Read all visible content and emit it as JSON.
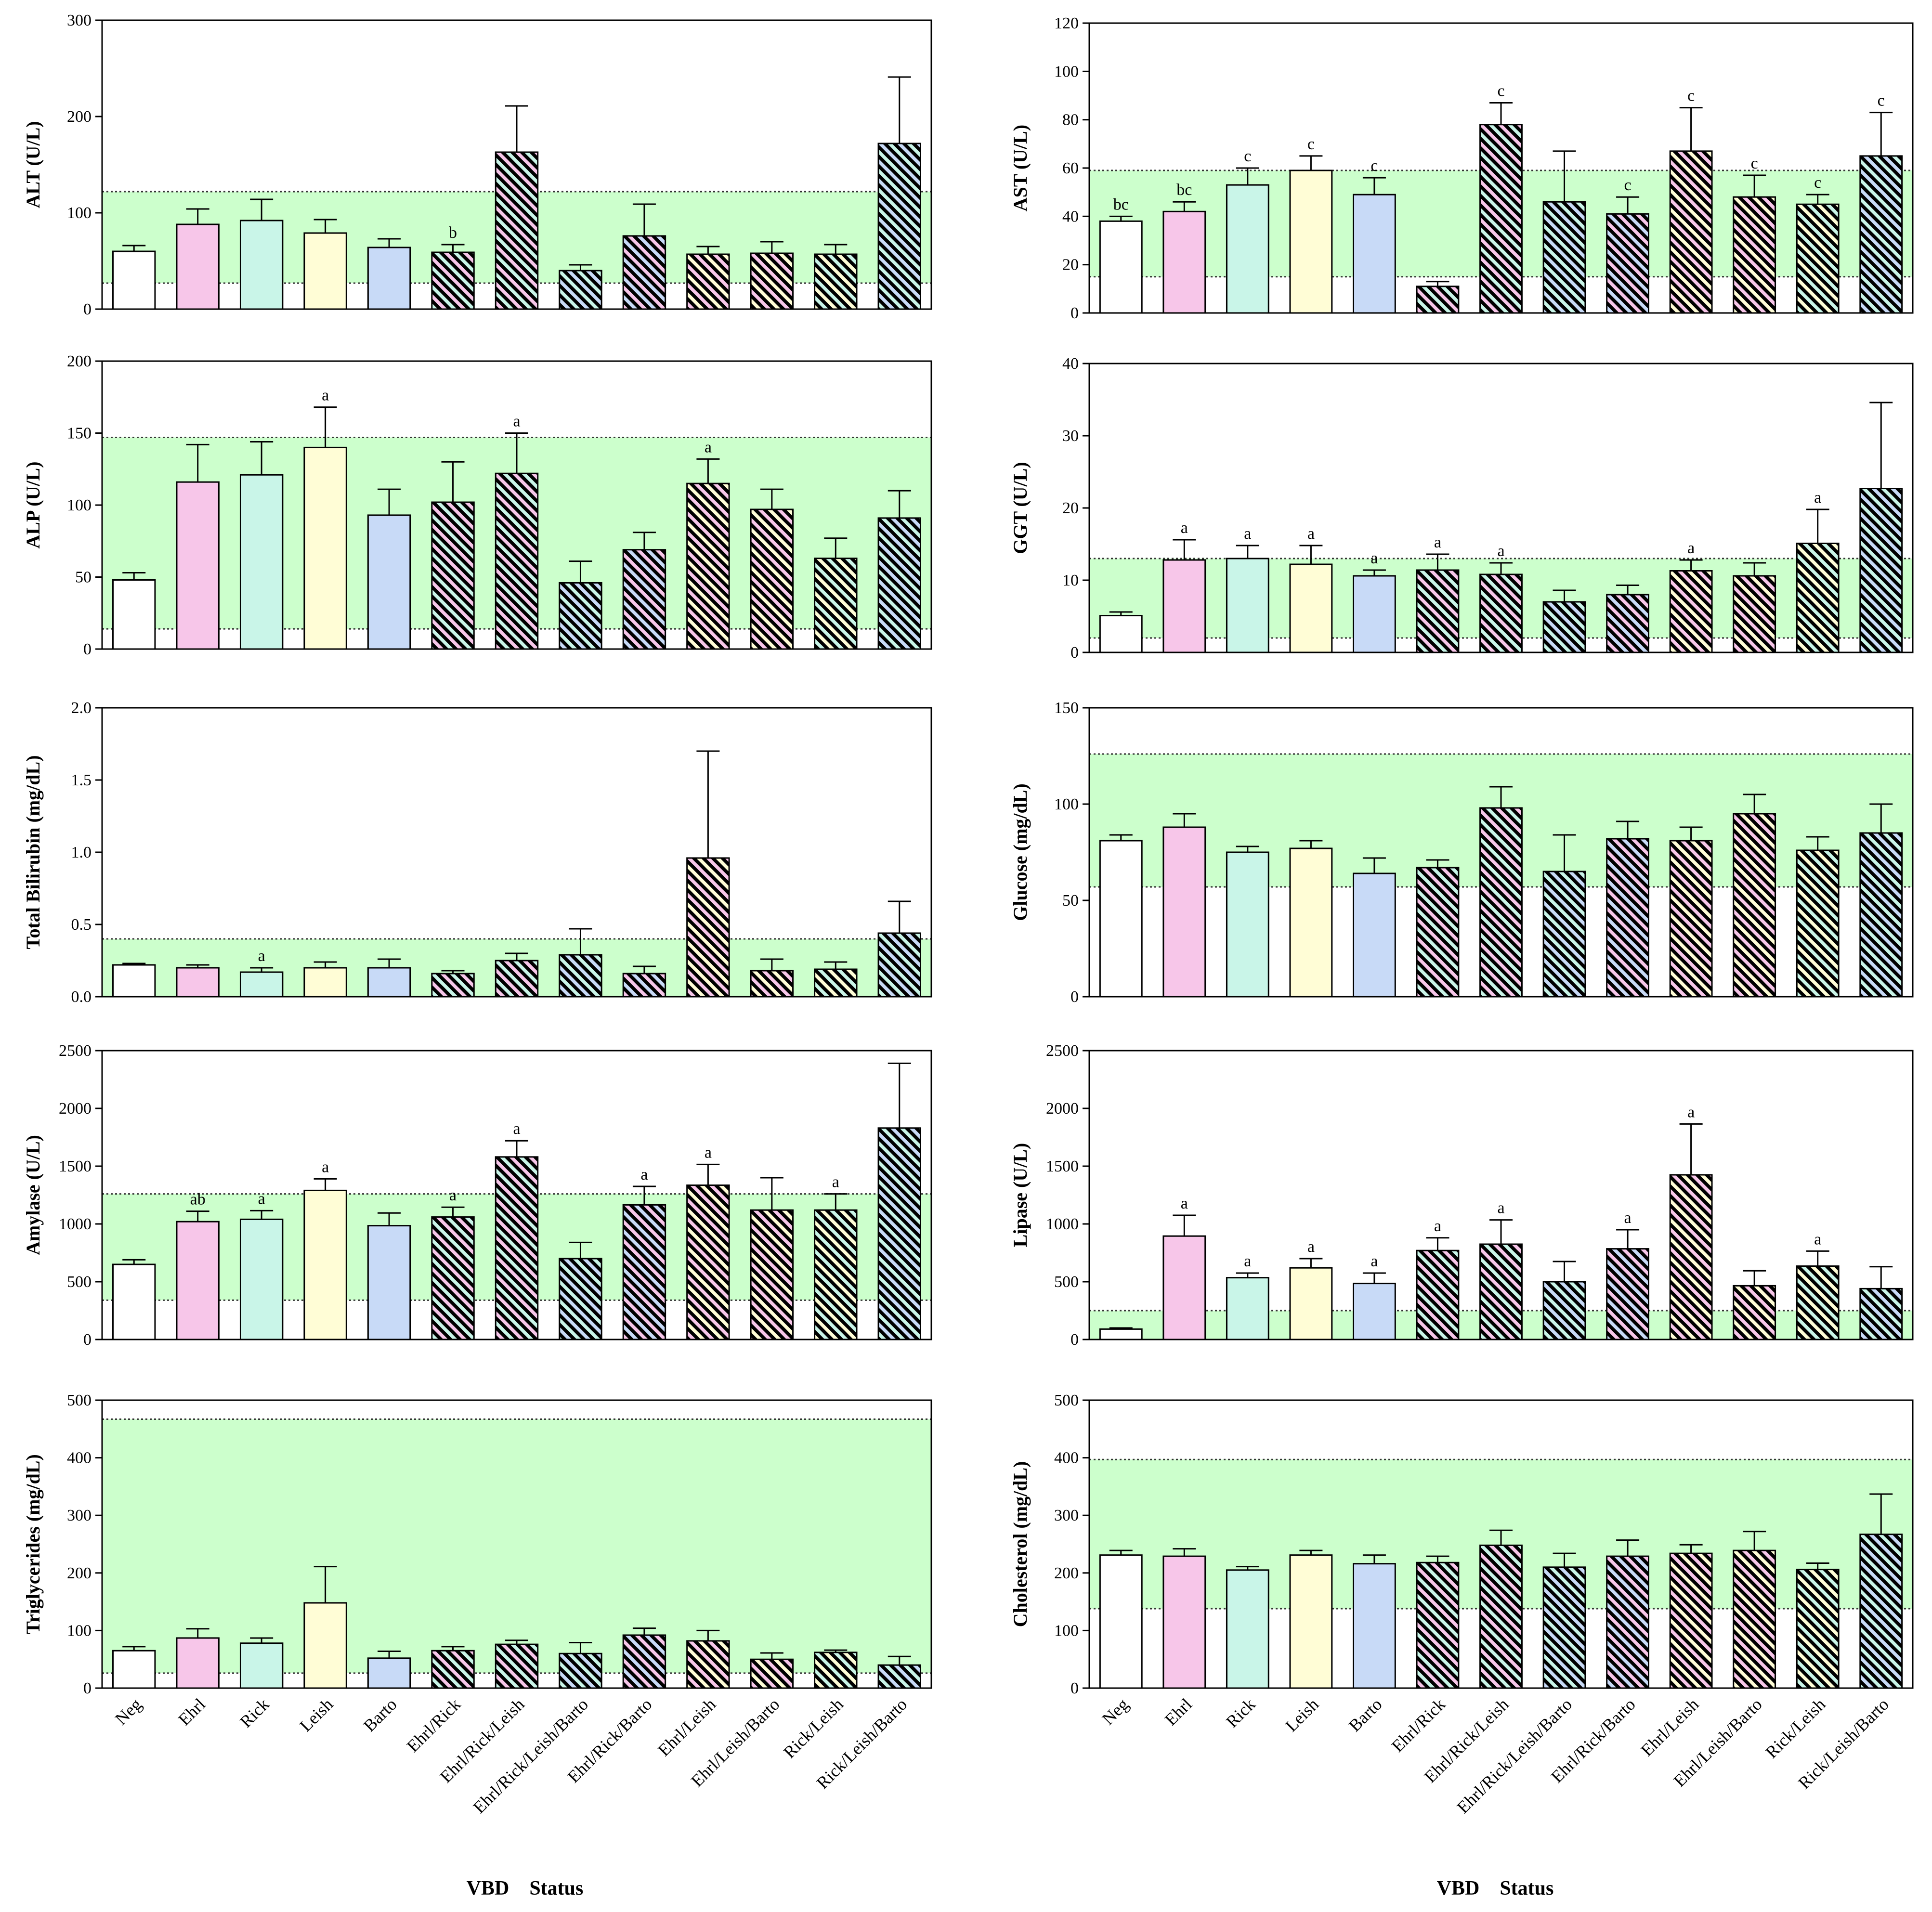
{
  "palette": {
    "reference_band": "#ccffcc",
    "reference_line": "#333333",
    "bar_outline": "#000000",
    "groups": [
      "#ffffff",
      "#f7c6e9",
      "#c9f5e8",
      "#fffdd6",
      "#c8daf7",
      "#f7c6e9",
      "#f7c6e9",
      "#c9f5e8",
      "#c8daf7",
      "#f7c6e9",
      "#f7c6e9",
      "#c9f5e8",
      "#c9f5e8"
    ],
    "hatch_secondary": [
      "",
      "",
      "",
      "",
      "",
      "#c9f5e8",
      "#c9f5e8",
      "#c8daf7",
      "#f7c6e9",
      "#fffdd6",
      "#fffdd6",
      "#fffdd6",
      "#c8daf7"
    ],
    "hatched": [
      false,
      false,
      false,
      false,
      false,
      true,
      true,
      true,
      true,
      true,
      true,
      true,
      true
    ]
  },
  "categories": [
    "Neg",
    "Ehrl",
    "Rick",
    "Leish",
    "Barto",
    "Ehrl/Rick",
    "Ehrl/Rick/Leish",
    "Ehrl/Rick/Leish/Barto",
    "Ehrl/Rick/Barto",
    "Ehrl/Leish",
    "Ehrl/Leish/Barto",
    "Rick/Leish",
    "Rick/Leish/Barto"
  ],
  "x_title": "VBD    Status",
  "chart_data": [
    {
      "type": "bar",
      "panel": "left-1",
      "ylabel": "ALT (U/L)",
      "ylim": [
        0,
        300
      ],
      "yticks": [
        0,
        100,
        200,
        300
      ],
      "tick_labels": [
        "0",
        "100",
        "200",
        "300"
      ],
      "reference_range": [
        27,
        122
      ],
      "values": [
        60,
        88,
        92,
        79,
        64,
        59,
        163,
        40,
        76,
        57,
        58,
        57,
        172
      ],
      "errors": [
        6,
        16,
        22,
        14,
        9,
        8,
        48,
        6,
        33,
        8,
        12,
        10,
        69
      ],
      "letters": [
        "",
        "",
        "",
        "",
        "",
        "b",
        "",
        "",
        "",
        "",
        "",
        "",
        ""
      ]
    },
    {
      "type": "bar",
      "panel": "right-1",
      "ylabel": "AST (U/L)",
      "ylim": [
        0,
        120
      ],
      "yticks": [
        0,
        20,
        40,
        60,
        80,
        100,
        120
      ],
      "tick_labels": [
        "0",
        "20",
        "40",
        "60",
        "80",
        "100",
        "120"
      ],
      "reference_range": [
        15,
        59
      ],
      "values": [
        38,
        42,
        53,
        59,
        49,
        11,
        78,
        46,
        41,
        67,
        48,
        45,
        65
      ],
      "errors": [
        2,
        4,
        7,
        6,
        7,
        2,
        9,
        21,
        7,
        18,
        9,
        4,
        18
      ],
      "letters": [
        "bc",
        "bc",
        "c",
        "c",
        "c",
        "",
        "c",
        "",
        "c",
        "c",
        "c",
        "c",
        "c"
      ]
    },
    {
      "type": "bar",
      "panel": "left-2",
      "ylabel": "ALP (U/L)",
      "ylim": [
        0,
        200
      ],
      "yticks": [
        0,
        50,
        100,
        150,
        200
      ],
      "tick_labels": [
        "0",
        "50",
        "100",
        "150",
        "200"
      ],
      "reference_range": [
        14,
        147
      ],
      "values": [
        48,
        116,
        121,
        140,
        93,
        102,
        122,
        46,
        69,
        115,
        97,
        63,
        91
      ],
      "errors": [
        5,
        26,
        23,
        28,
        18,
        28,
        28,
        15,
        12,
        17,
        14,
        14,
        19
      ],
      "letters": [
        "",
        "",
        "",
        "a",
        "",
        "",
        "a",
        "",
        "",
        "a",
        "",
        "",
        ""
      ]
    },
    {
      "type": "bar",
      "panel": "right-2",
      "ylabel": "GGT (U/L)",
      "ylim": [
        0,
        40
      ],
      "yticks": [
        0,
        10,
        20,
        30,
        40
      ],
      "tick_labels": [
        "0",
        "10",
        "20",
        "30",
        "40"
      ],
      "reference_range": [
        2,
        13
      ],
      "values": [
        5.1,
        12.8,
        13.0,
        12.2,
        10.6,
        11.4,
        10.8,
        7.0,
        8.0,
        11.3,
        10.6,
        15.1,
        22.7
      ],
      "errors": [
        0.5,
        2.8,
        1.8,
        2.6,
        0.8,
        2.2,
        1.6,
        1.6,
        1.3,
        1.5,
        1.8,
        4.7,
        11.9
      ],
      "letters": [
        "",
        "a",
        "a",
        "a",
        "a",
        "a",
        "a",
        "",
        "",
        "a",
        "",
        "a",
        ""
      ]
    },
    {
      "type": "bar",
      "panel": "left-3",
      "ylabel": "Total Bilirubin (mg/dL)",
      "ylim": [
        0,
        2.0
      ],
      "yticks": [
        0,
        0.5,
        1.0,
        1.5,
        2.0
      ],
      "tick_labels": [
        "0.0",
        "0.5",
        "1.0",
        "1.5",
        "2.0"
      ],
      "reference_range": [
        0,
        0.4
      ],
      "values": [
        0.22,
        0.2,
        0.17,
        0.2,
        0.2,
        0.16,
        0.25,
        0.29,
        0.16,
        0.96,
        0.18,
        0.19,
        0.44
      ],
      "errors": [
        0.01,
        0.02,
        0.03,
        0.04,
        0.06,
        0.02,
        0.05,
        0.18,
        0.05,
        0.74,
        0.08,
        0.05,
        0.22
      ],
      "letters": [
        "",
        "",
        "a",
        "",
        "",
        "",
        "",
        "",
        "",
        "",
        "",
        "",
        ""
      ]
    },
    {
      "type": "bar",
      "panel": "right-3",
      "ylabel": "Glucose (mg/dL)",
      "ylim": [
        0,
        150
      ],
      "yticks": [
        0,
        50,
        100,
        150
      ],
      "tick_labels": [
        "0",
        "50",
        "100",
        "150"
      ],
      "reference_range": [
        57,
        126
      ],
      "values": [
        81,
        88,
        75,
        77,
        64,
        67,
        98,
        65,
        82,
        81,
        95,
        76,
        85
      ],
      "errors": [
        3,
        7,
        3,
        4,
        8,
        4,
        11,
        19,
        9,
        7,
        10,
        7,
        15
      ],
      "letters": [
        "",
        "",
        "",
        "",
        "",
        "",
        "",
        "",
        "",
        "",
        "",
        "",
        ""
      ]
    },
    {
      "type": "bar",
      "panel": "left-4",
      "ylabel": "Amylase (U/L)",
      "ylim": [
        0,
        2500
      ],
      "yticks": [
        0,
        500,
        1000,
        1500,
        2000,
        2500
      ],
      "tick_labels": [
        "0",
        "500",
        "1000",
        "1500",
        "2000",
        "2500"
      ],
      "reference_range": [
        340,
        1260
      ],
      "values": [
        650,
        1020,
        1040,
        1290,
        985,
        1060,
        1580,
        700,
        1165,
        1335,
        1120,
        1120,
        1830
      ],
      "errors": [
        40,
        90,
        75,
        100,
        110,
        85,
        140,
        140,
        160,
        180,
        280,
        140,
        560
      ],
      "letters": [
        "",
        "ab",
        "a",
        "a",
        "",
        "a",
        "a",
        "",
        "a",
        "a",
        "",
        "a",
        ""
      ]
    },
    {
      "type": "bar",
      "panel": "right-4",
      "ylabel": "Lipase (U/L)",
      "ylim": [
        0,
        2500
      ],
      "yticks": [
        0,
        500,
        1000,
        1500,
        2000,
        2500
      ],
      "tick_labels": [
        "0",
        "500",
        "1000",
        "1500",
        "2000",
        "2500"
      ],
      "reference_range": [
        0,
        250
      ],
      "values": [
        90,
        895,
        535,
        620,
        485,
        770,
        825,
        500,
        785,
        1425,
        465,
        635,
        440
      ],
      "errors": [
        10,
        180,
        40,
        80,
        90,
        110,
        210,
        175,
        165,
        440,
        130,
        130,
        190
      ],
      "letters": [
        "",
        "a",
        "a",
        "a",
        "a",
        "a",
        "a",
        "",
        "a",
        "a",
        "",
        "a",
        ""
      ]
    },
    {
      "type": "bar",
      "panel": "left-5",
      "ylabel": "Triglycerides (mg/dL)",
      "ylim": [
        0,
        500
      ],
      "yticks": [
        0,
        100,
        200,
        300,
        400,
        500
      ],
      "tick_labels": [
        "0",
        "100",
        "200",
        "300",
        "400",
        "500"
      ],
      "reference_range": [
        26,
        467
      ],
      "values": [
        65,
        87,
        78,
        148,
        52,
        65,
        76,
        60,
        92,
        82,
        50,
        62,
        40
      ],
      "errors": [
        7,
        16,
        9,
        63,
        12,
        7,
        7,
        19,
        12,
        18,
        11,
        4,
        15
      ],
      "letters": [
        "",
        "",
        "",
        "",
        "",
        "",
        "",
        "",
        "",
        "",
        "",
        "",
        ""
      ]
    },
    {
      "type": "bar",
      "panel": "right-5",
      "ylabel": "Cholesterol (mg/dL)",
      "ylim": [
        0,
        500
      ],
      "yticks": [
        0,
        100,
        200,
        300,
        400,
        500
      ],
      "tick_labels": [
        "0",
        "100",
        "200",
        "300",
        "400",
        "500"
      ],
      "reference_range": [
        138,
        397
      ],
      "values": [
        231,
        229,
        205,
        231,
        216,
        218,
        248,
        210,
        229,
        234,
        239,
        206,
        267
      ],
      "errors": [
        8,
        13,
        6,
        8,
        15,
        11,
        26,
        24,
        28,
        15,
        33,
        11,
        70
      ],
      "letters": [
        "",
        "",
        "",
        "",
        "",
        "",
        "",
        "",
        "",
        "",
        "",
        "",
        ""
      ]
    }
  ]
}
